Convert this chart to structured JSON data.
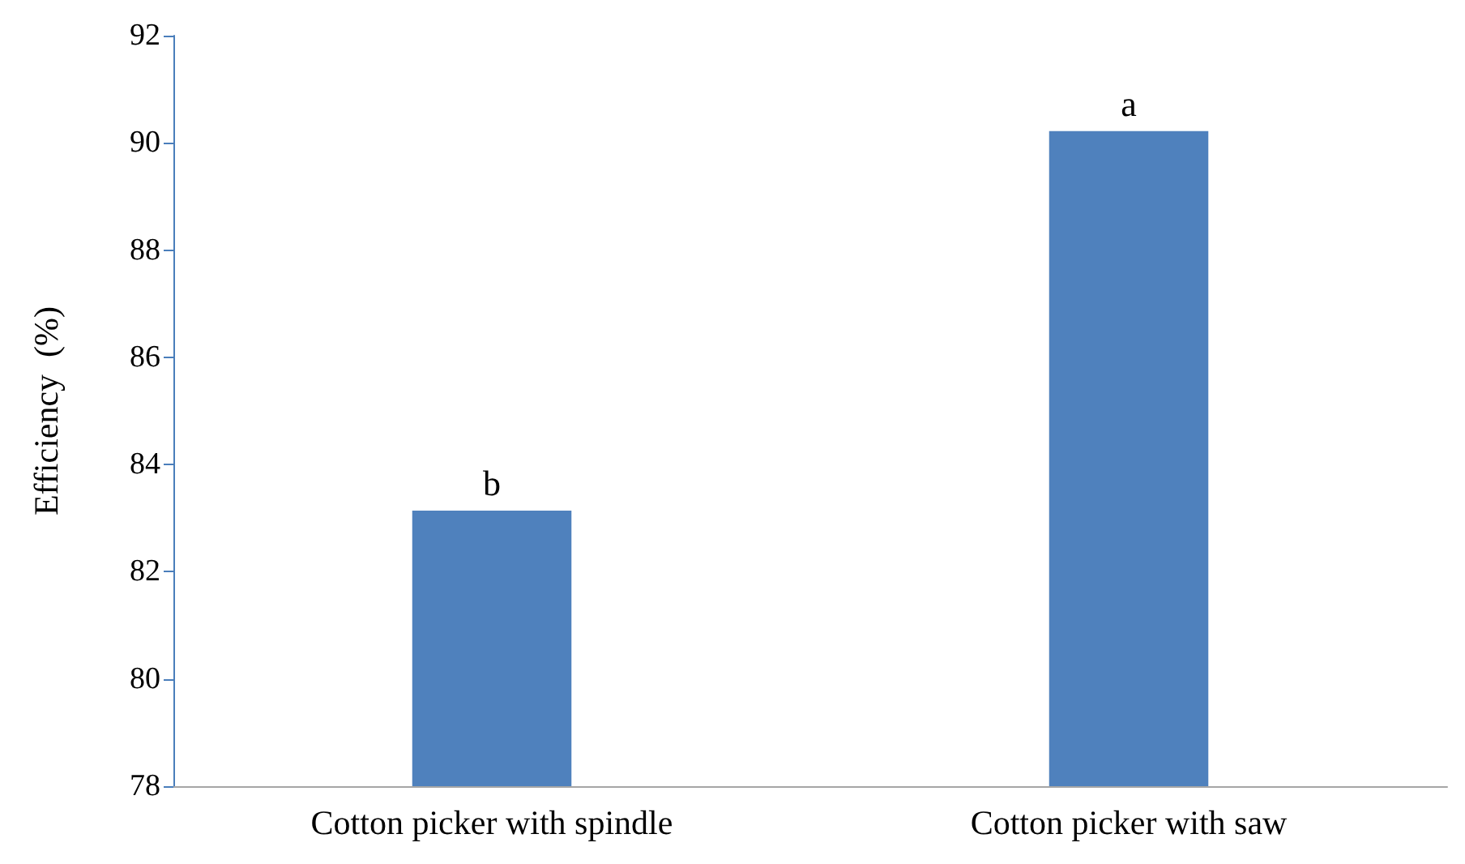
{
  "chart_data": {
    "type": "bar",
    "ylabel": "Efficiency  (%)",
    "categories": [
      "Cotton picker with spindle",
      "Cotton picker with saw"
    ],
    "values": [
      83.14,
      90.22
    ],
    "color": "#4f81bd",
    "ylim": [
      78,
      92
    ],
    "yticks": [
      78,
      80,
      82,
      84,
      86,
      88,
      90,
      92
    ],
    "grid": false,
    "annotations": [
      {
        "text": "b",
        "x": "Cotton picker with spindle",
        "y": 83.14
      },
      {
        "text": "a",
        "x": "Cotton picker with saw",
        "y": 90.22
      }
    ]
  }
}
